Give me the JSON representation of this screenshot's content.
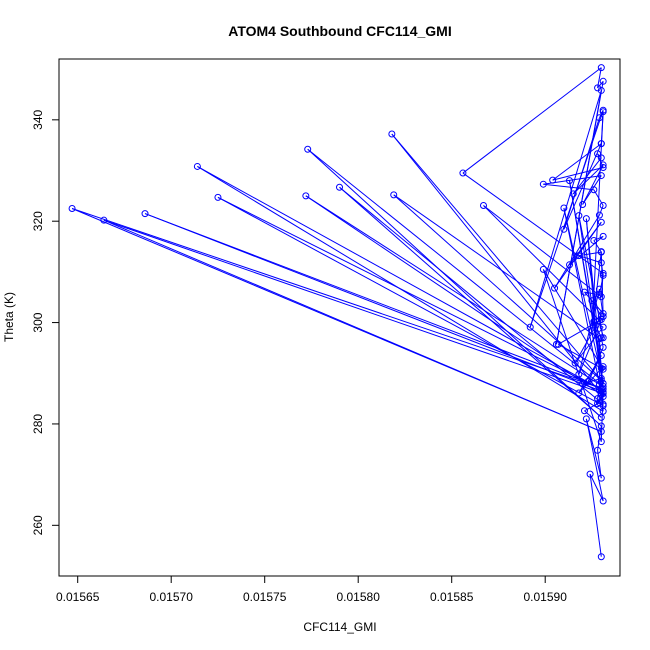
{
  "chart_data": {
    "type": "line",
    "title": "ATOM4 Southbound CFC114_GMI",
    "xlabel": "CFC114_GMI",
    "ylabel": "Theta (K)",
    "xlim": [
      0.01564,
      0.01594
    ],
    "ylim": [
      250,
      352
    ],
    "xticks": [
      0.01565,
      0.0157,
      0.01575,
      0.0158,
      0.01585,
      0.0159
    ],
    "xtick_labels": [
      "0.01565",
      "0.01570",
      "0.01575",
      "0.01580",
      "0.01585",
      "0.01590"
    ],
    "yticks": [
      260,
      280,
      300,
      320,
      340
    ],
    "ytick_labels": [
      "260",
      "280",
      "300",
      "320",
      "340"
    ],
    "grid": false,
    "legend": "none",
    "markers": "open-circle",
    "color": "#0000ff",
    "series": [
      {
        "x": [
          0.01593,
          0.015924,
          0.015931,
          0.015922,
          0.01593,
          0.015928,
          0.01593,
          0.015921,
          0.015929,
          0.015931,
          0.01592,
          0.01593,
          0.015928,
          0.015931,
          0.015918,
          0.01593,
          0.015923,
          0.015931,
          0.01593,
          0.015926,
          0.015931,
          0.015916,
          0.01593,
          0.015925,
          0.015931,
          0.015921,
          0.015929,
          0.015931,
          0.01593,
          0.015918,
          0.01593,
          0.015926,
          0.015931,
          0.015913,
          0.01593,
          0.015905,
          0.015929,
          0.015931,
          0.015926,
          0.015899,
          0.01593,
          0.01592,
          0.015931,
          0.015915,
          0.01593,
          0.015928,
          0.015931,
          0.015904,
          0.01593,
          0.01591,
          0.015929,
          0.015931,
          0.015892,
          0.01593,
          0.015906,
          0.015931,
          0.015928,
          0.01593,
          0.015856,
          0.015931,
          0.01593,
          0.015867,
          0.015929,
          0.015931,
          0.015918,
          0.01593,
          0.015913,
          0.015931,
          0.01591,
          0.01593,
          0.015928,
          0.015931,
          0.015818,
          0.01593,
          0.015819,
          0.015929,
          0.015931,
          0.01579,
          0.01593,
          0.015773,
          0.015931,
          0.015922,
          0.01593,
          0.015772,
          0.015929,
          0.015931,
          0.015725,
          0.01593,
          0.015714,
          0.015931,
          0.01593,
          0.015686,
          0.015929,
          0.015931,
          0.015664,
          0.01593,
          0.015647,
          0.015931,
          0.01593,
          0.015899,
          0.015931,
          0.015907,
          0.01593,
          0.015918,
          0.015929,
          0.015931,
          0.01593,
          0.015925,
          0.015931,
          0.01593
        ],
        "y": [
          253.8,
          270.1,
          264.8,
          281.0,
          269.3,
          274.8,
          279.6,
          282.6,
          284.2,
          286.3,
          287.9,
          289.0,
          285.0,
          291.3,
          286.1,
          293.5,
          288.4,
          295.1,
          297.0,
          300.2,
          299.1,
          292.0,
          301.3,
          304.3,
          301.8,
          306.0,
          305.5,
          309.3,
          311.8,
          313.2,
          313.9,
          316.2,
          317.0,
          311.4,
          319.8,
          306.8,
          321.2,
          323.1,
          326.2,
          327.3,
          329.0,
          323.3,
          331.1,
          325.4,
          332.5,
          333.3,
          330.6,
          328.1,
          335.3,
          318.4,
          340.4,
          341.9,
          299.1,
          345.8,
          295.7,
          347.6,
          346.3,
          350.3,
          329.5,
          309.7,
          305.1,
          323.1,
          300.4,
          297.0,
          321.1,
          291.0,
          328.0,
          288.0,
          322.6,
          286.1,
          284.0,
          285.4,
          337.2,
          288.6,
          325.2,
          296.8,
          283.9,
          326.7,
          281.3,
          334.2,
          287.4,
          320.5,
          285.8,
          325.0,
          287.8,
          283.6,
          324.7,
          286.8,
          330.8,
          282.5,
          287.1,
          321.5,
          286.6,
          286.0,
          320.2,
          278.5,
          322.5,
          286.9,
          276.5,
          310.5,
          290.8,
          295.7,
          300.6,
          289.8,
          306.6,
          301.2,
          314.0,
          298.4,
          341.6,
          335.3
        ]
      }
    ]
  }
}
